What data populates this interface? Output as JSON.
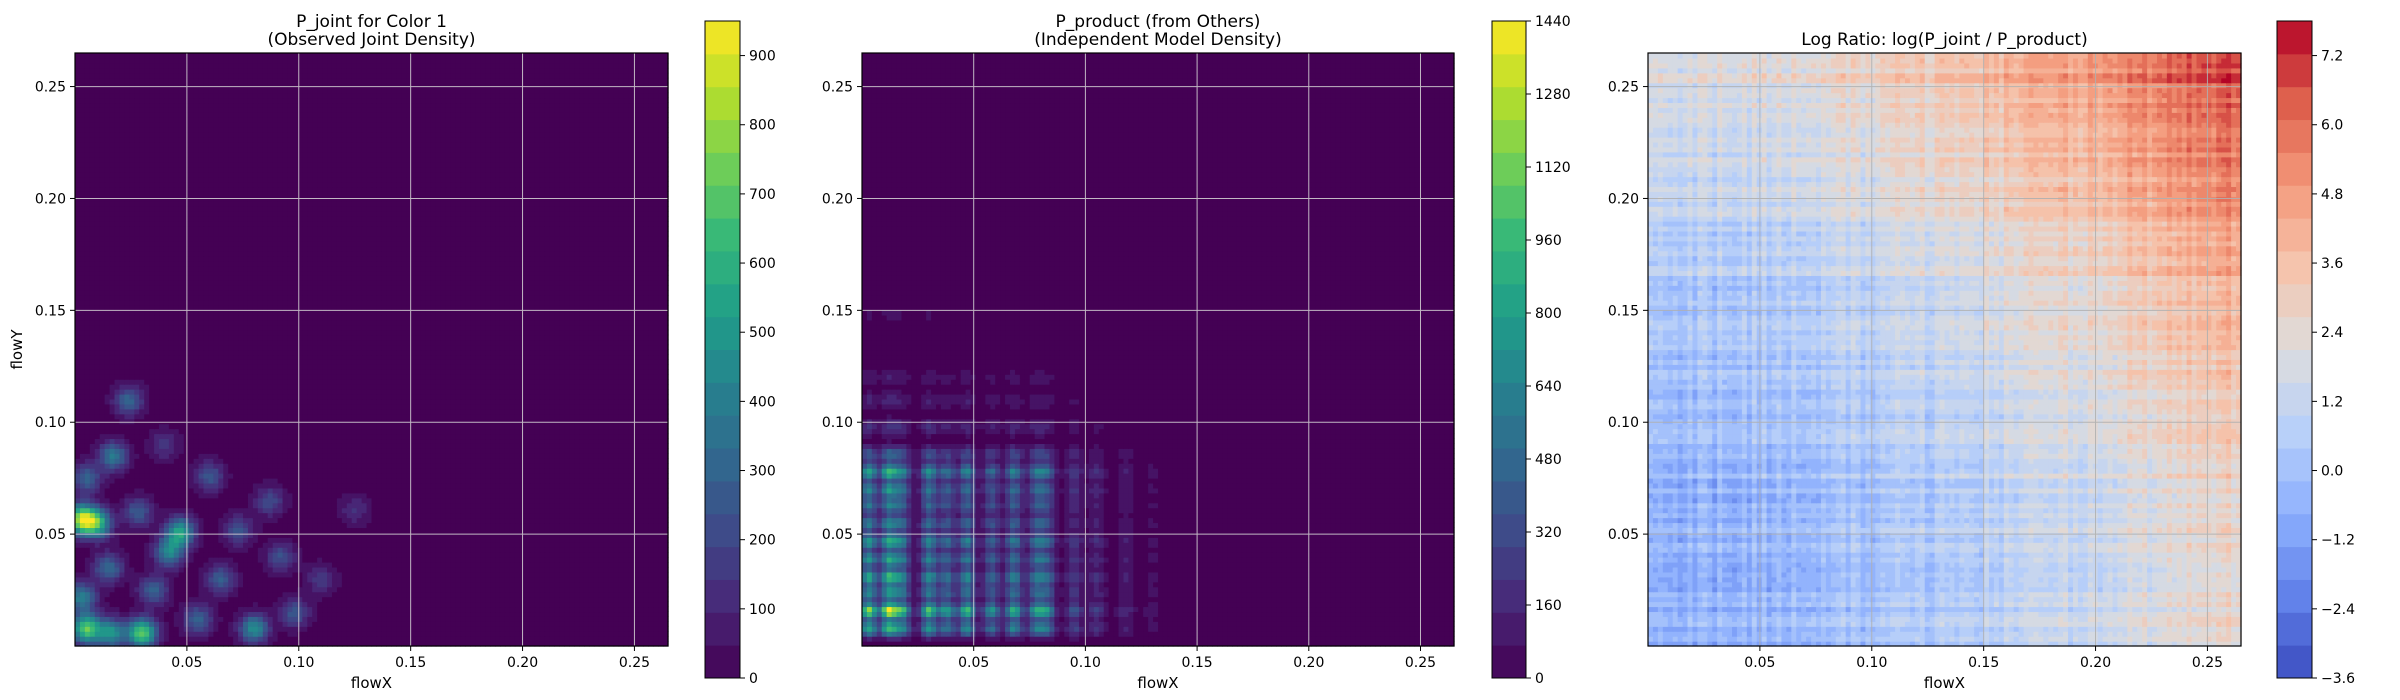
{
  "chart_data": [
    {
      "type": "heatmap",
      "title": "P_joint for Color 1\n(Observed Joint Density)",
      "xlabel": "flowX",
      "ylabel": "flowY",
      "xlim": [
        0.0,
        0.265
      ],
      "ylim": [
        0.0,
        0.265
      ],
      "x_ticks": [
        0.05,
        0.1,
        0.15,
        0.2,
        0.25
      ],
      "x_tick_labels": [
        "0.05",
        "0.10",
        "0.15",
        "0.20",
        "0.25"
      ],
      "y_ticks": [
        0.05,
        0.1,
        0.15,
        0.2,
        0.25
      ],
      "y_tick_labels": [
        "0.05",
        "0.10",
        "0.15",
        "0.20",
        "0.25"
      ],
      "grid": true,
      "colormap": "viridis",
      "colorbar": {
        "range": [
          0,
          950
        ],
        "ticks": [
          0,
          100,
          200,
          300,
          400,
          500,
          600,
          700,
          800,
          900
        ],
        "tick_labels": [
          "0",
          "100",
          "200",
          "300",
          "400",
          "500",
          "600",
          "700",
          "800",
          "900"
        ]
      },
      "peaks": [
        {
          "x": 0.003,
          "y": 0.057,
          "value": 820
        },
        {
          "x": 0.01,
          "y": 0.055,
          "value": 560
        },
        {
          "x": 0.005,
          "y": 0.008,
          "value": 700
        },
        {
          "x": 0.03,
          "y": 0.006,
          "value": 720
        },
        {
          "x": 0.016,
          "y": 0.006,
          "value": 480
        },
        {
          "x": 0.047,
          "y": 0.051,
          "value": 560
        },
        {
          "x": 0.042,
          "y": 0.042,
          "value": 420
        },
        {
          "x": 0.024,
          "y": 0.11,
          "value": 300
        },
        {
          "x": 0.017,
          "y": 0.085,
          "value": 380
        },
        {
          "x": 0.06,
          "y": 0.076,
          "value": 260
        },
        {
          "x": 0.08,
          "y": 0.008,
          "value": 460
        },
        {
          "x": 0.015,
          "y": 0.035,
          "value": 330
        },
        {
          "x": 0.035,
          "y": 0.025,
          "value": 300
        },
        {
          "x": 0.003,
          "y": 0.022,
          "value": 420
        },
        {
          "x": 0.065,
          "y": 0.03,
          "value": 280
        },
        {
          "x": 0.092,
          "y": 0.04,
          "value": 230
        },
        {
          "x": 0.055,
          "y": 0.012,
          "value": 300
        },
        {
          "x": 0.098,
          "y": 0.015,
          "value": 260
        },
        {
          "x": 0.087,
          "y": 0.065,
          "value": 220
        },
        {
          "x": 0.125,
          "y": 0.061,
          "value": 130
        },
        {
          "x": 0.005,
          "y": 0.075,
          "value": 300
        },
        {
          "x": 0.04,
          "y": 0.09,
          "value": 150
        },
        {
          "x": 0.073,
          "y": 0.052,
          "value": 240
        },
        {
          "x": 0.028,
          "y": 0.06,
          "value": 270
        },
        {
          "x": 0.11,
          "y": 0.03,
          "value": 160
        }
      ]
    },
    {
      "type": "heatmap",
      "title": "P_product (from Others)\n(Independent Model Density)",
      "xlabel": "flowX",
      "ylabel": "",
      "xlim": [
        0.0,
        0.265
      ],
      "ylim": [
        0.0,
        0.265
      ],
      "x_ticks": [
        0.05,
        0.1,
        0.15,
        0.2,
        0.25
      ],
      "x_tick_labels": [
        "0.05",
        "0.10",
        "0.15",
        "0.20",
        "0.25"
      ],
      "y_ticks": [
        0.05,
        0.1,
        0.15,
        0.2,
        0.25
      ],
      "y_tick_labels": [
        "0.05",
        "0.10",
        "0.15",
        "0.20",
        "0.25"
      ],
      "grid": true,
      "colormap": "viridis",
      "colorbar": {
        "range": [
          0,
          1440
        ],
        "ticks": [
          0,
          160,
          320,
          480,
          640,
          800,
          960,
          1120,
          1280,
          1440
        ],
        "tick_labels": [
          "0",
          "160",
          "320",
          "480",
          "640",
          "800",
          "960",
          "1120",
          "1280",
          "1440"
        ]
      },
      "x_marginal": [
        {
          "x": 0.003,
          "w": 0.9
        },
        {
          "x": 0.012,
          "w": 1.0
        },
        {
          "x": 0.018,
          "w": 0.7
        },
        {
          "x": 0.03,
          "w": 0.8
        },
        {
          "x": 0.038,
          "w": 0.6
        },
        {
          "x": 0.047,
          "w": 0.75
        },
        {
          "x": 0.058,
          "w": 0.55
        },
        {
          "x": 0.068,
          "w": 0.7
        },
        {
          "x": 0.078,
          "w": 0.6
        },
        {
          "x": 0.083,
          "w": 0.5
        },
        {
          "x": 0.095,
          "w": 0.3
        },
        {
          "x": 0.105,
          "w": 0.22
        },
        {
          "x": 0.118,
          "w": 0.14
        },
        {
          "x": 0.13,
          "w": 0.07
        }
      ],
      "y_marginal": [
        {
          "y": 0.008,
          "w": 0.7
        },
        {
          "y": 0.016,
          "w": 1.0
        },
        {
          "y": 0.024,
          "w": 0.55
        },
        {
          "y": 0.031,
          "w": 0.7
        },
        {
          "y": 0.039,
          "w": 0.6
        },
        {
          "y": 0.047,
          "w": 0.65
        },
        {
          "y": 0.055,
          "w": 0.5
        },
        {
          "y": 0.063,
          "w": 0.45
        },
        {
          "y": 0.07,
          "w": 0.55
        },
        {
          "y": 0.078,
          "w": 0.7
        },
        {
          "y": 0.086,
          "w": 0.35
        },
        {
          "y": 0.098,
          "w": 0.18
        },
        {
          "y": 0.11,
          "w": 0.12
        },
        {
          "y": 0.12,
          "w": 0.08
        },
        {
          "y": 0.148,
          "w": 0.04
        }
      ]
    },
    {
      "type": "heatmap",
      "title": "Log Ratio: log(P_joint / P_product)",
      "xlabel": "flowX",
      "ylabel": "",
      "xlim": [
        0.0,
        0.265
      ],
      "ylim": [
        0.0,
        0.265
      ],
      "x_ticks": [
        0.05,
        0.1,
        0.15,
        0.2,
        0.25
      ],
      "x_tick_labels": [
        "0.05",
        "0.10",
        "0.15",
        "0.20",
        "0.25"
      ],
      "y_ticks": [
        0.05,
        0.1,
        0.15,
        0.2,
        0.25
      ],
      "y_tick_labels": [
        "0.05",
        "0.10",
        "0.15",
        "0.20",
        "0.25"
      ],
      "grid": true,
      "colormap": "coolwarm",
      "colorbar": {
        "range": [
          -3.6,
          7.8
        ],
        "ticks": [
          -3.6,
          -2.4,
          -1.2,
          0.0,
          1.2,
          2.4,
          3.6,
          4.8,
          6.0,
          7.2
        ],
        "tick_labels": [
          "−3.6",
          "−2.4",
          "−1.2",
          "0.0",
          "1.2",
          "2.4",
          "3.6",
          "4.8",
          "6.0",
          "7.2"
        ]
      },
      "approx_surface": {
        "at_origin": -0.8,
        "at_x_max": 2.6,
        "at_y_max": 2.0,
        "at_corner": 7.4
      }
    }
  ]
}
